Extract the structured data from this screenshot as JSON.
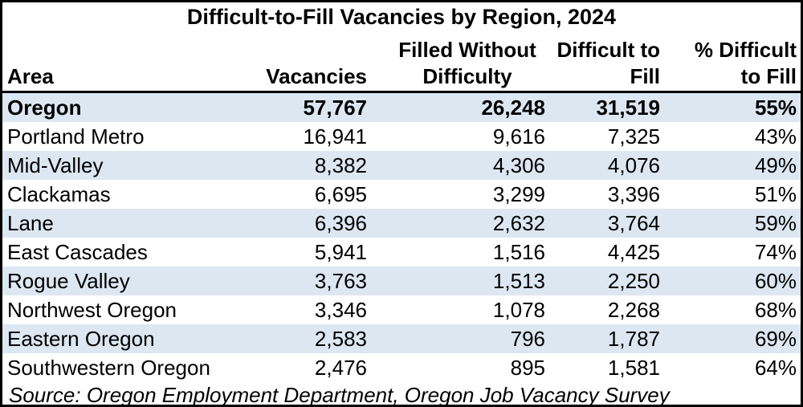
{
  "title": "Difficult-to-Fill Vacancies by Region, 2024",
  "columns": [
    {
      "id": "area",
      "line1": "",
      "line2": "Area"
    },
    {
      "id": "vacancies",
      "line1": "",
      "line2": "Vacancies"
    },
    {
      "id": "filled",
      "line1": "Filled Without",
      "line2": "Difficulty"
    },
    {
      "id": "difficult",
      "line1": "Difficult to",
      "line2": "Fill"
    },
    {
      "id": "pct",
      "line1": "% Difficult",
      "line2": "to Fill"
    }
  ],
  "rows": [
    {
      "area": "Oregon",
      "vacancies": "57,767",
      "filled": "26,248",
      "difficult": "31,519",
      "pct": "55%",
      "bold": true
    },
    {
      "area": "Portland Metro",
      "vacancies": "16,941",
      "filled": "9,616",
      "difficult": "7,325",
      "pct": "43%",
      "bold": false
    },
    {
      "area": "Mid-Valley",
      "vacancies": "8,382",
      "filled": "4,306",
      "difficult": "4,076",
      "pct": "49%",
      "bold": false
    },
    {
      "area": "Clackamas",
      "vacancies": "6,695",
      "filled": "3,299",
      "difficult": "3,396",
      "pct": "51%",
      "bold": false
    },
    {
      "area": "Lane",
      "vacancies": "6,396",
      "filled": "2,632",
      "difficult": "3,764",
      "pct": "59%",
      "bold": false
    },
    {
      "area": "East Cascades",
      "vacancies": "5,941",
      "filled": "1,516",
      "difficult": "4,425",
      "pct": "74%",
      "bold": false
    },
    {
      "area": "Rogue Valley",
      "vacancies": "3,763",
      "filled": "1,513",
      "difficult": "2,250",
      "pct": "60%",
      "bold": false
    },
    {
      "area": "Northwest Oregon",
      "vacancies": "3,346",
      "filled": "1,078",
      "difficult": "2,268",
      "pct": "68%",
      "bold": false
    },
    {
      "area": "Eastern Oregon",
      "vacancies": "2,583",
      "filled": "796",
      "difficult": "1,787",
      "pct": "69%",
      "bold": false
    },
    {
      "area": "Southwestern Oregon",
      "vacancies": "2,476",
      "filled": "895",
      "difficult": "1,581",
      "pct": "64%",
      "bold": false
    }
  ],
  "source_note": "Source: Oregon Employment Department, Oregon Job Vacancy Survey",
  "colors": {
    "band_blue": "#DCE7F2",
    "border_black": "#000000",
    "background_white": "#FFFFFF",
    "text_black": "#000000"
  },
  "chart_data": {
    "type": "table",
    "title": "Difficult-to-Fill Vacancies by Region, 2024",
    "columns": [
      "Area",
      "Vacancies",
      "Filled Without Difficulty",
      "Difficult to Fill",
      "% Difficult to Fill"
    ],
    "rows": [
      [
        "Oregon",
        57767,
        26248,
        31519,
        "55%"
      ],
      [
        "Portland Metro",
        16941,
        9616,
        7325,
        "43%"
      ],
      [
        "Mid-Valley",
        8382,
        4306,
        4076,
        "49%"
      ],
      [
        "Clackamas",
        6695,
        3299,
        3396,
        "51%"
      ],
      [
        "Lane",
        6396,
        2632,
        3764,
        "59%"
      ],
      [
        "East Cascades",
        5941,
        1516,
        4425,
        "74%"
      ],
      [
        "Rogue Valley",
        3763,
        1513,
        2250,
        "60%"
      ],
      [
        "Northwest Oregon",
        3346,
        1078,
        2268,
        "68%"
      ],
      [
        "Eastern Oregon",
        2583,
        796,
        1787,
        "69%"
      ],
      [
        "Southwestern Oregon",
        2476,
        895,
        1581,
        "64%"
      ]
    ],
    "notes": "Source: Oregon Employment Department, Oregon Job Vacancy Survey",
    "layout_hints": {
      "banded_rows": "odd rows light blue starting with Oregon totals row",
      "totals_row": "Oregon (bold)",
      "header_separator": "thick black rule below column headers"
    }
  }
}
